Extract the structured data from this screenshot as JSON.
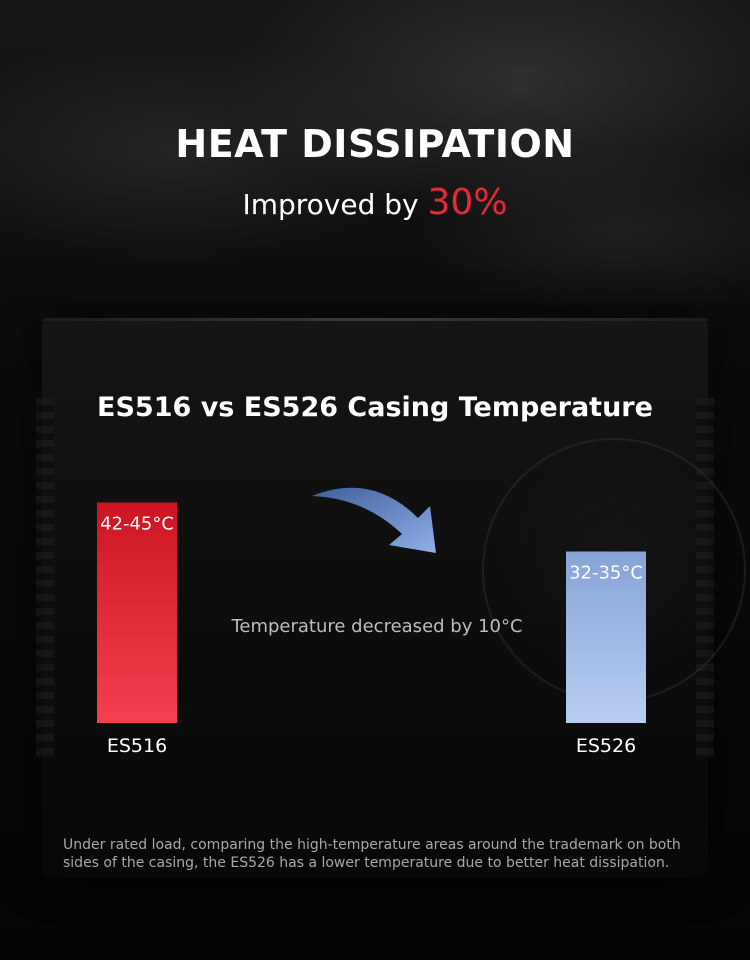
{
  "header": {
    "title": "HEAT DISSIPATION",
    "subtitle_prefix": "Improved by ",
    "subtitle_highlight": "30%"
  },
  "chart_data": {
    "type": "bar",
    "title": "ES516 vs ES526 Casing Temperature",
    "categories": [
      "ES516",
      "ES526"
    ],
    "series": [
      {
        "values": [
          [
            42,
            45
          ],
          [
            32,
            35
          ]
        ],
        "value_labels": [
          "42-45°C",
          "32-35°C"
        ]
      }
    ],
    "unit": "°C",
    "colors": {
      "ES516": [
        "#cc1521",
        "#f5404f"
      ],
      "ES526": [
        "#86a4d6",
        "#b8cdf1"
      ]
    },
    "annotation": "Temperature decreased by 10°C",
    "arrow_color": "#8fb0e6",
    "grid": false,
    "legend": "none"
  },
  "footnote": "Under rated load, comparing the high-temperature areas around the trademark on both sides of the casing, the ES526 has a lower temperature due to better heat dissipation.",
  "colors": {
    "accent": "#e8293a",
    "background": "#0a0a0a"
  }
}
